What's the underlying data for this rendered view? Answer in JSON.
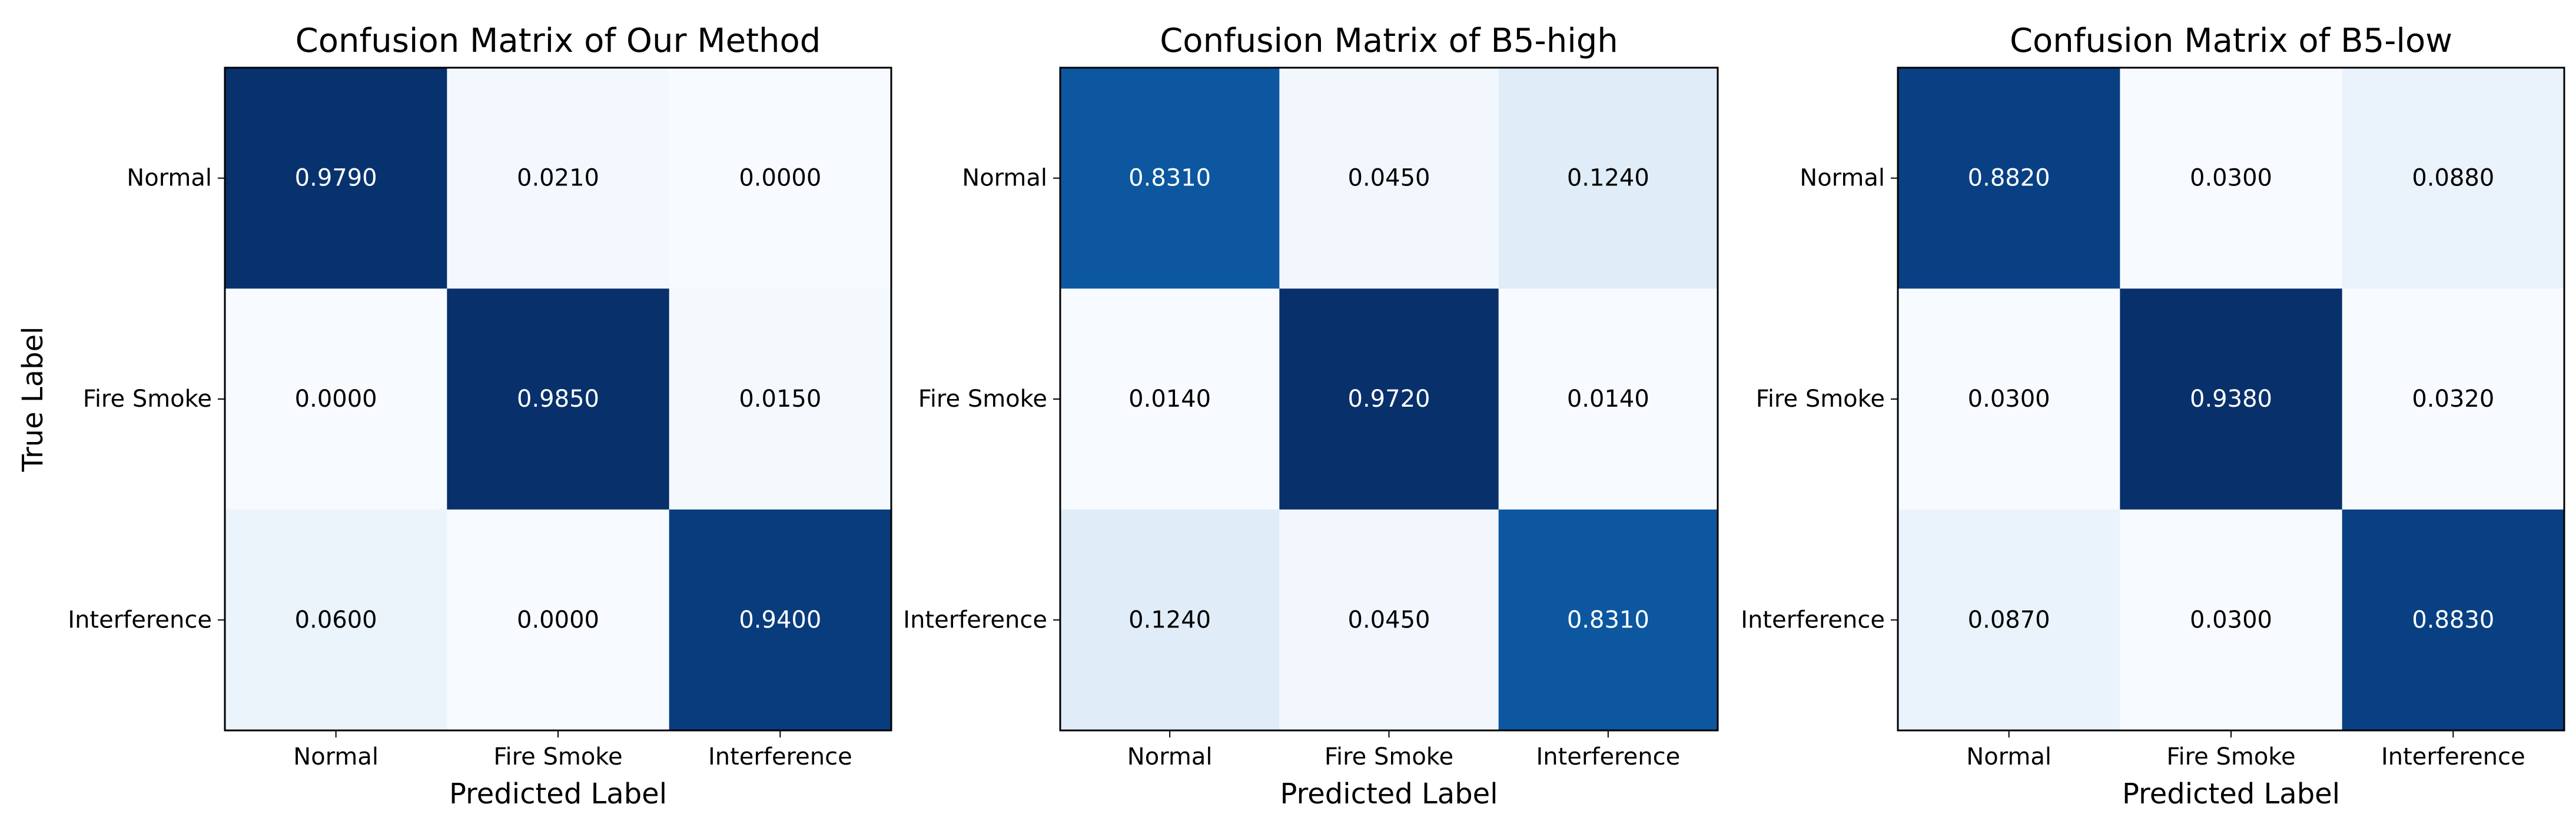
{
  "chart_data": [
    {
      "type": "heatmap",
      "title": "Confusion Matrix of Our Method",
      "xlabel": "Predicted Label",
      "ylabel": "True Label",
      "row_labels": [
        "Normal",
        "Fire Smoke",
        "Interference"
      ],
      "col_labels": [
        "Normal",
        "Fire Smoke",
        "Interference"
      ],
      "values": [
        [
          0.979,
          0.021,
          0.0
        ],
        [
          0.0,
          0.985,
          0.015
        ],
        [
          0.06,
          0.0,
          0.94
        ]
      ],
      "value_labels": [
        [
          "0.9790",
          "0.0210",
          "0.0000"
        ],
        [
          "0.0000",
          "0.9850",
          "0.0150"
        ],
        [
          "0.0600",
          "0.0000",
          "0.9400"
        ]
      ],
      "colormap": "Blues"
    },
    {
      "type": "heatmap",
      "title": "Confusion Matrix of B5-high",
      "xlabel": "Predicted Label",
      "ylabel": "",
      "row_labels": [
        "Normal",
        "Fire Smoke",
        "Interference"
      ],
      "col_labels": [
        "Normal",
        "Fire Smoke",
        "Interference"
      ],
      "values": [
        [
          0.831,
          0.045,
          0.124
        ],
        [
          0.014,
          0.972,
          0.014
        ],
        [
          0.124,
          0.045,
          0.831
        ]
      ],
      "value_labels": [
        [
          "0.8310",
          "0.0450",
          "0.1240"
        ],
        [
          "0.0140",
          "0.9720",
          "0.0140"
        ],
        [
          "0.1240",
          "0.0450",
          "0.8310"
        ]
      ],
      "colormap": "Blues"
    },
    {
      "type": "heatmap",
      "title": "Confusion Matrix of B5-low",
      "xlabel": "Predicted Label",
      "ylabel": "",
      "row_labels": [
        "Normal",
        "Fire Smoke",
        "Interference"
      ],
      "col_labels": [
        "Normal",
        "Fire Smoke",
        "Interference"
      ],
      "values": [
        [
          0.882,
          0.03,
          0.088
        ],
        [
          0.03,
          0.938,
          0.032
        ],
        [
          0.087,
          0.03,
          0.883
        ]
      ],
      "value_labels": [
        [
          "0.8820",
          "0.0300",
          "0.0880"
        ],
        [
          "0.0300",
          "0.9380",
          "0.0320"
        ],
        [
          "0.0870",
          "0.0300",
          "0.8830"
        ]
      ],
      "colormap": "Blues"
    }
  ]
}
